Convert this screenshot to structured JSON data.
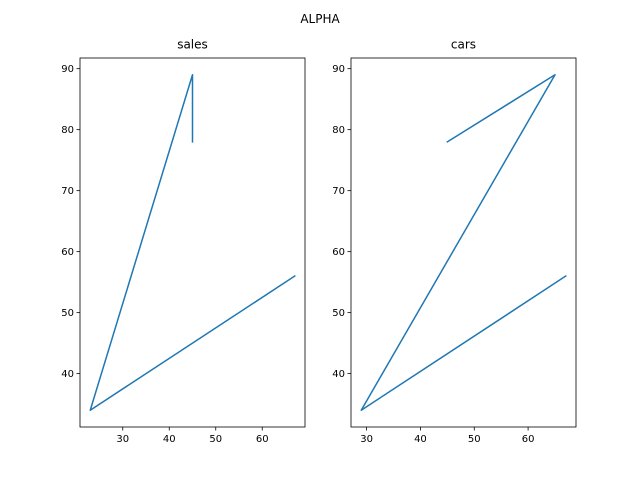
{
  "figure": {
    "suptitle": "ALPHA"
  },
  "chart_data": [
    {
      "type": "line",
      "title": "sales",
      "xlabel": "",
      "ylabel": "",
      "xlim": [
        20.8,
        69.2
      ],
      "ylim": [
        31.25,
        91.75
      ],
      "xticks": [
        30,
        40,
        50,
        60
      ],
      "yticks": [
        40,
        50,
        60,
        70,
        80,
        90
      ],
      "grid": false,
      "series": [
        {
          "color": "#1f77b4",
          "x": [
            67,
            23,
            45,
            45
          ],
          "y": [
            56,
            34,
            89,
            78
          ]
        }
      ]
    },
    {
      "type": "line",
      "title": "cars",
      "xlabel": "",
      "ylabel": "",
      "xlim": [
        27.1,
        68.9
      ],
      "ylim": [
        31.25,
        91.75
      ],
      "xticks": [
        30,
        40,
        50,
        60
      ],
      "yticks": [
        40,
        50,
        60,
        70,
        80,
        90
      ],
      "grid": false,
      "series": [
        {
          "color": "#1f77b4",
          "x": [
            67,
            29,
            65,
            45
          ],
          "y": [
            56,
            34,
            89,
            78
          ]
        }
      ]
    }
  ]
}
